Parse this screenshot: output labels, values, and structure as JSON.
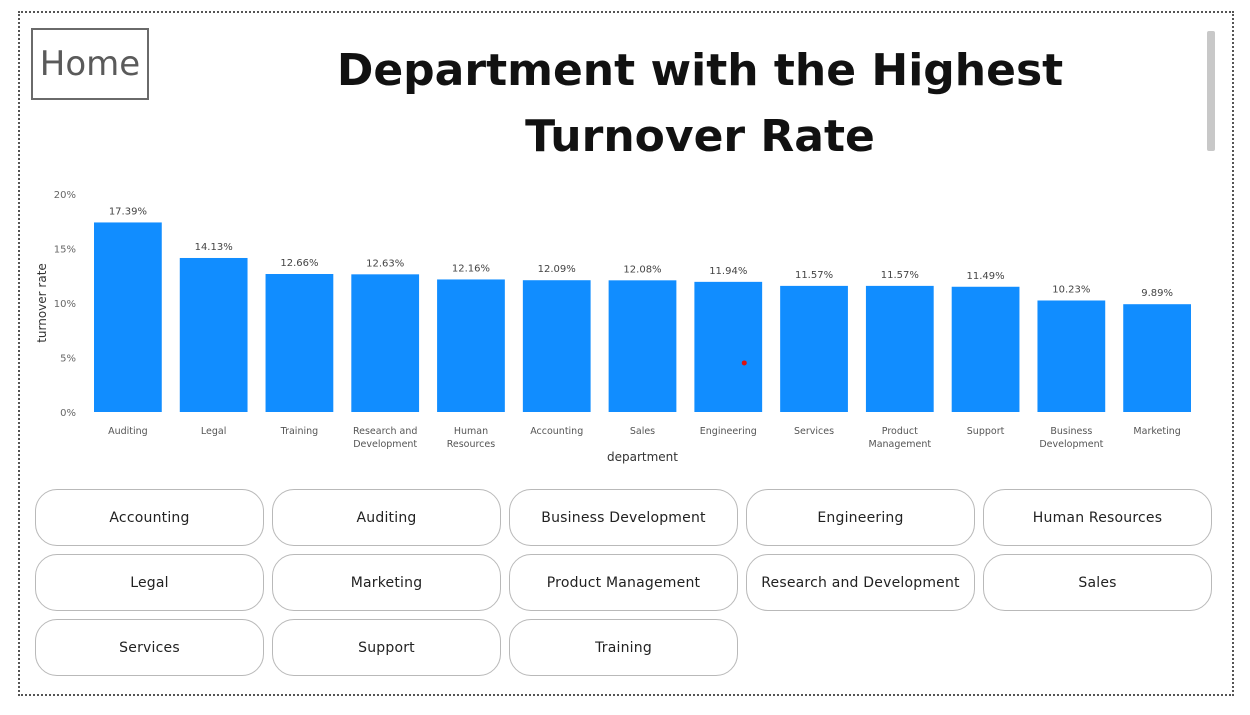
{
  "header": {
    "home_label": "Home",
    "title": "Department with the Highest Turnover Rate"
  },
  "chart_data": {
    "type": "bar",
    "title": "",
    "xlabel": "department",
    "ylabel": "turnover rate",
    "ylim": [
      0,
      20
    ],
    "yticks": [
      "0%",
      "5%",
      "10%",
      "15%",
      "20%"
    ],
    "categories": [
      [
        "Auditing"
      ],
      [
        "Legal"
      ],
      [
        "Training"
      ],
      [
        "Research and",
        "Development"
      ],
      [
        "Human",
        "Resources"
      ],
      [
        "Accounting"
      ],
      [
        "Sales"
      ],
      [
        "Engineering"
      ],
      [
        "Services"
      ],
      [
        "Product",
        "Management"
      ],
      [
        "Support"
      ],
      [
        "Business",
        "Development"
      ],
      [
        "Marketing"
      ]
    ],
    "values": [
      17.39,
      14.13,
      12.66,
      12.63,
      12.16,
      12.09,
      12.08,
      11.94,
      11.57,
      11.57,
      11.49,
      10.23,
      9.89
    ],
    "data_labels": [
      "17.39%",
      "14.13%",
      "12.66%",
      "12.63%",
      "12.16%",
      "12.09%",
      "12.08%",
      "11.94%",
      "11.57%",
      "11.57%",
      "11.49%",
      "10.23%",
      "9.89%"
    ],
    "bar_color": "#118DFF",
    "grid": false,
    "legend": "none"
  },
  "slicer": {
    "items": [
      "Accounting",
      "Auditing",
      "Business Development",
      "Engineering",
      "Human Resources",
      "Legal",
      "Marketing",
      "Product Management",
      "Research and Development",
      "Sales",
      "Services",
      "Support",
      "Training"
    ]
  }
}
